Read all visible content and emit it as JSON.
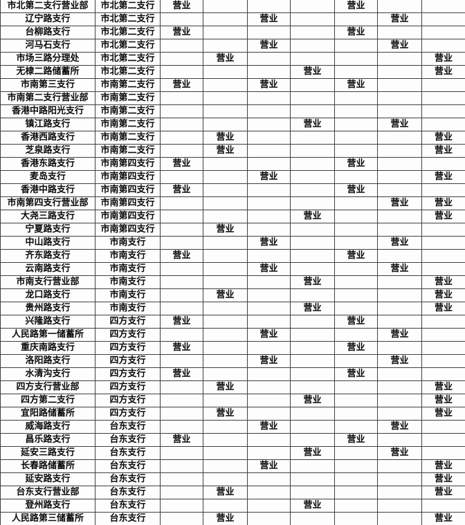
{
  "colors": {
    "background": "#fdfdfd",
    "grid_border": "#3f3f3f",
    "text": "#0a0a0a"
  },
  "table": {
    "mark_label": "营业",
    "mark_column_count": 7,
    "rows": [
      {
        "name": "市北第二支行营业部",
        "parent": "市北第二支行",
        "marks": [
          1,
          0,
          0,
          0,
          1,
          0,
          0
        ]
      },
      {
        "name": "辽宁路支行",
        "parent": "市北第二支行",
        "marks": [
          0,
          0,
          1,
          0,
          0,
          1,
          0
        ]
      },
      {
        "name": "台柳路支行",
        "parent": "市北第二支行",
        "marks": [
          1,
          0,
          0,
          0,
          1,
          0,
          0
        ]
      },
      {
        "name": "河马石支行",
        "parent": "市北第二支行",
        "marks": [
          0,
          0,
          1,
          0,
          0,
          1,
          0
        ]
      },
      {
        "name": "市场三路分理处",
        "parent": "市北第二支行",
        "marks": [
          0,
          1,
          0,
          0,
          0,
          0,
          1
        ]
      },
      {
        "name": "无棣二路储蓄所",
        "parent": "市北第二支行",
        "marks": [
          0,
          0,
          0,
          1,
          0,
          0,
          1
        ]
      },
      {
        "name": "市南第三支行",
        "parent": "市南第二支行",
        "marks": [
          1,
          0,
          1,
          0,
          1,
          0,
          0
        ]
      },
      {
        "name": "市南第二支行营业部",
        "parent": "市南第二支行",
        "marks": [
          0,
          0,
          0,
          0,
          0,
          0,
          0
        ]
      },
      {
        "name": "香港中路阳光支行",
        "parent": "市南第二支行",
        "marks": [
          0,
          0,
          0,
          0,
          0,
          0,
          0
        ]
      },
      {
        "name": "镇江路支行",
        "parent": "市南第二支行",
        "marks": [
          0,
          0,
          0,
          1,
          0,
          1,
          0
        ]
      },
      {
        "name": "香港西路支行",
        "parent": "市南第二支行",
        "marks": [
          0,
          1,
          0,
          0,
          0,
          0,
          1
        ]
      },
      {
        "name": "芝泉路支行",
        "parent": "市南第二支行",
        "marks": [
          0,
          1,
          0,
          0,
          0,
          0,
          1
        ]
      },
      {
        "name": "香港东路支行",
        "parent": "市南第四支行",
        "marks": [
          1,
          0,
          0,
          0,
          1,
          0,
          0
        ]
      },
      {
        "name": "麦岛支行",
        "parent": "市南第四支行",
        "marks": [
          0,
          0,
          1,
          0,
          0,
          0,
          1
        ]
      },
      {
        "name": "香港中路支行",
        "parent": "市南第四支行",
        "marks": [
          1,
          0,
          0,
          0,
          1,
          0,
          0
        ]
      },
      {
        "name": "市南第四支行营业部",
        "parent": "市南第四支行",
        "marks": [
          0,
          0,
          0,
          0,
          0,
          1,
          1
        ]
      },
      {
        "name": "大尧三路支行",
        "parent": "市南第四支行",
        "marks": [
          0,
          0,
          0,
          1,
          0,
          0,
          1
        ]
      },
      {
        "name": "宁夏路支行",
        "parent": "市南第四支行",
        "marks": [
          0,
          1,
          0,
          0,
          0,
          0,
          0
        ]
      },
      {
        "name": "中山路支行",
        "parent": "市南支行",
        "marks": [
          0,
          0,
          1,
          0,
          0,
          1,
          0
        ]
      },
      {
        "name": "齐东路支行",
        "parent": "市南支行",
        "marks": [
          1,
          0,
          0,
          0,
          1,
          0,
          0
        ]
      },
      {
        "name": "云南路支行",
        "parent": "市南支行",
        "marks": [
          0,
          0,
          1,
          0,
          0,
          1,
          0
        ]
      },
      {
        "name": "市南支行营业部",
        "parent": "市南支行",
        "marks": [
          0,
          0,
          0,
          1,
          0,
          0,
          1
        ]
      },
      {
        "name": "龙口路支行",
        "parent": "市南支行",
        "marks": [
          0,
          1,
          0,
          0,
          0,
          0,
          1
        ]
      },
      {
        "name": "贵州路支行",
        "parent": "市南支行",
        "marks": [
          0,
          0,
          0,
          1,
          0,
          0,
          1
        ]
      },
      {
        "name": "兴隆路支行",
        "parent": "四方支行",
        "marks": [
          1,
          0,
          0,
          0,
          1,
          0,
          0
        ]
      },
      {
        "name": "人民路第一储蓄所",
        "parent": "四方支行",
        "marks": [
          0,
          0,
          1,
          0,
          0,
          1,
          0
        ]
      },
      {
        "name": "重庆南路支行",
        "parent": "四方支行",
        "marks": [
          1,
          0,
          0,
          0,
          1,
          0,
          0
        ]
      },
      {
        "name": "洛阳路支行",
        "parent": "四方支行",
        "marks": [
          0,
          0,
          1,
          0,
          0,
          1,
          0
        ]
      },
      {
        "name": "水清沟支行",
        "parent": "四方支行",
        "marks": [
          1,
          0,
          0,
          0,
          1,
          0,
          0
        ]
      },
      {
        "name": "四方支行营业部",
        "parent": "四方支行",
        "marks": [
          0,
          1,
          0,
          0,
          0,
          0,
          1
        ]
      },
      {
        "name": "四方第二支行",
        "parent": "四方支行",
        "marks": [
          0,
          0,
          0,
          1,
          0,
          0,
          1
        ]
      },
      {
        "name": "宜阳路储蓄所",
        "parent": "四方支行",
        "marks": [
          0,
          1,
          0,
          0,
          0,
          0,
          1
        ]
      },
      {
        "name": "威海路支行",
        "parent": "台东支行",
        "marks": [
          0,
          0,
          1,
          0,
          0,
          1,
          0
        ]
      },
      {
        "name": "昌乐路支行",
        "parent": "台东支行",
        "marks": [
          1,
          0,
          0,
          0,
          1,
          0,
          0
        ]
      },
      {
        "name": "延安三路支行",
        "parent": "台东支行",
        "marks": [
          0,
          0,
          0,
          1,
          0,
          1,
          0
        ]
      },
      {
        "name": "长春路储蓄所",
        "parent": "台东支行",
        "marks": [
          0,
          0,
          1,
          0,
          0,
          0,
          1
        ]
      },
      {
        "name": "延安路支行",
        "parent": "台东支行",
        "marks": [
          0,
          0,
          0,
          0,
          0,
          0,
          1
        ]
      },
      {
        "name": "台东支行营业部",
        "parent": "台东支行",
        "marks": [
          0,
          1,
          0,
          0,
          0,
          0,
          1
        ]
      },
      {
        "name": "登州路支行",
        "parent": "台东支行",
        "marks": [
          0,
          0,
          0,
          1,
          0,
          0,
          0
        ]
      },
      {
        "name": "人民路第三储蓄所",
        "parent": "台东支行",
        "marks": [
          0,
          1,
          0,
          0,
          0,
          0,
          1
        ]
      }
    ]
  }
}
